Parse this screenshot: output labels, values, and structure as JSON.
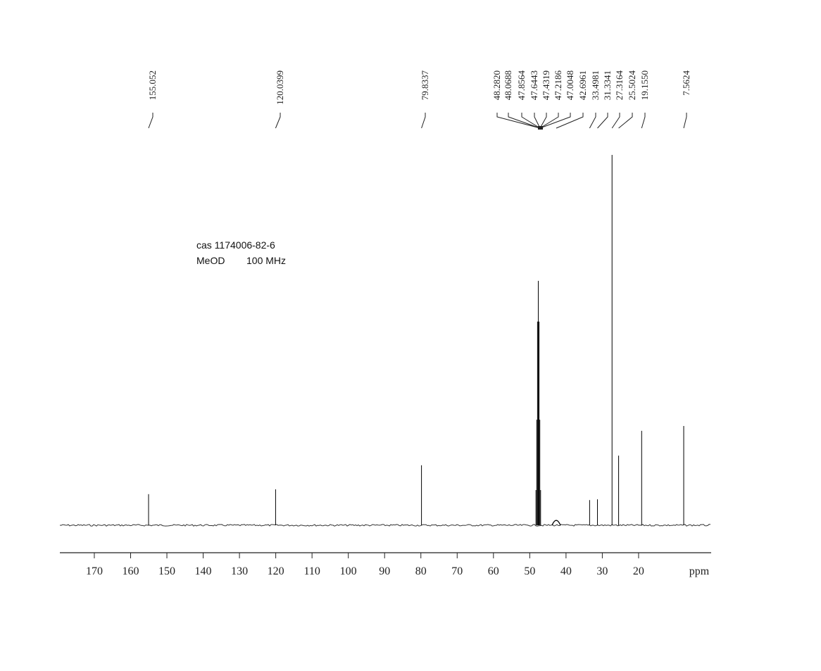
{
  "chart_data": {
    "type": "nmr",
    "annotations": [
      "cas 1174006-82-6",
      "MeOD",
      "100 MHz"
    ],
    "xlabel": "ppm",
    "xlim": [
      179.5,
      0
    ],
    "xticks": [
      170,
      160,
      150,
      140,
      130,
      120,
      110,
      100,
      90,
      80,
      70,
      60,
      50,
      40,
      30,
      20
    ],
    "ylim": [
      0,
      100
    ],
    "color": "#000000",
    "peaks": {
      "x": [
        155.052,
        120.0399,
        79.8337,
        48.282,
        48.0688,
        47.8564,
        47.6443,
        47.4319,
        47.2186,
        47.0048,
        42.6961,
        33.4981,
        31.3341,
        27.3164,
        25.5024,
        19.155,
        7.5624
      ],
      "labels": [
        "155.052",
        "120.0399",
        "79.8337",
        "48.2820",
        "48.0688",
        "47.8564",
        "47.6443",
        "47.4319",
        "47.2186",
        "47.0048",
        "42.6961",
        "33.4981",
        "31.3341",
        "27.3164",
        "25.5024",
        "19.1550",
        "7.5624"
      ],
      "values": [
        8.4,
        9.7,
        16.2,
        9.5,
        28.5,
        55,
        66,
        55,
        28.5,
        9.5,
        1.5,
        6.8,
        7.0,
        100,
        18.8,
        25.5,
        26.8
      ]
    }
  }
}
